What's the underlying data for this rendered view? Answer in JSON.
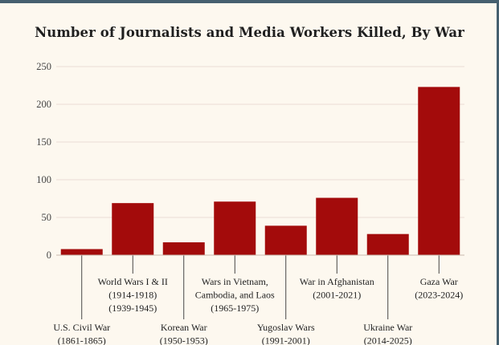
{
  "chart_data": {
    "type": "bar",
    "title": "Number of Journalists and Media Workers Killed, By War",
    "xlabel": "",
    "ylabel": "",
    "ylim": [
      0,
      250
    ],
    "yticks": [
      0,
      50,
      100,
      150,
      200,
      250
    ],
    "grid": true,
    "bar_color": "#a30b0b",
    "categories": [
      {
        "label": [
          "U.S. Civil War",
          "(1861-1865)"
        ],
        "label_level": "low"
      },
      {
        "label": [
          "World Wars I & II",
          "(1914-1918)",
          "(1939-1945)"
        ],
        "label_level": "high"
      },
      {
        "label": [
          "Korean War",
          "(1950-1953)"
        ],
        "label_level": "low"
      },
      {
        "label": [
          "Wars in Vietnam,",
          "Cambodia, and Laos",
          "(1965-1975)"
        ],
        "label_level": "high"
      },
      {
        "label": [
          "Yugoslav Wars",
          "(1991-2001)"
        ],
        "label_level": "low"
      },
      {
        "label": [
          "War in Afghanistan",
          "(2001-2021)"
        ],
        "label_level": "high"
      },
      {
        "label": [
          "Ukraine War",
          "(2014-2025)"
        ],
        "label_level": "low"
      },
      {
        "label": [
          "Gaza War",
          "(2023-2024)"
        ],
        "label_level": "high"
      }
    ],
    "values": [
      8,
      69,
      17,
      71,
      39,
      76,
      28,
      223
    ]
  }
}
